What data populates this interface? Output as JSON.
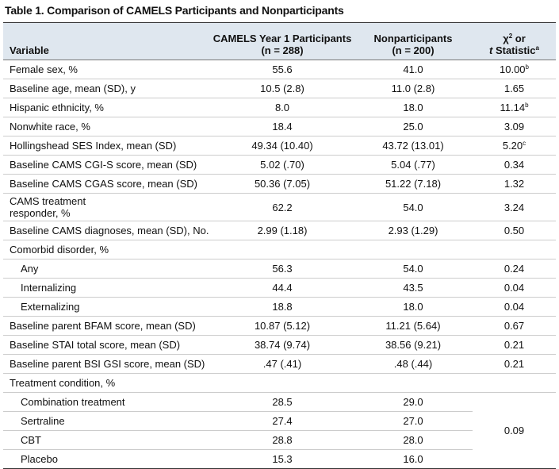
{
  "title": "Table 1. Comparison of CAMELS Participants and Nonparticipants",
  "table": {
    "header": {
      "variable": "Variable",
      "col1": [
        "CAMELS Year 1 Participants",
        "(n = 288)"
      ],
      "col2": [
        "Nonparticipants",
        "(n = 200)"
      ],
      "col3": {
        "line1": [
          "χ",
          "2",
          " or"
        ],
        "line2": [
          "t",
          " Statistic",
          "a"
        ]
      }
    },
    "rows": [
      [
        "Female sex, %",
        "55.6",
        "41.0",
        "10.00",
        "b"
      ],
      [
        "Baseline age, mean (SD), y",
        "10.5 (2.8)",
        "11.0 (2.8)",
        "1.65"
      ],
      [
        "Hispanic ethnicity, %",
        "8.0",
        "18.0",
        "11.14",
        "b"
      ],
      [
        "Nonwhite race, %",
        "18.4",
        "25.0",
        "3.09"
      ],
      [
        "Hollingshead SES Index, mean (SD)",
        "49.34 (10.40)",
        "43.72 (13.01)",
        "5.20",
        "c"
      ],
      [
        "Baseline CAMS CGI-S score, mean (SD)",
        "5.02 (.70)",
        "5.04 (.77)",
        "0.34"
      ],
      [
        "Baseline CAMS CGAS score, mean (SD)",
        "50.36 (7.05)",
        "51.22 (7.18)",
        "1.32"
      ],
      [
        "CAMS treatment responder, %",
        "62.2",
        "54.0",
        "3.24"
      ],
      [
        "Baseline CAMS diagnoses, mean (SD), No.",
        "2.99 (1.18)",
        "2.93 (1.29)",
        "0.50"
      ],
      [
        "Comorbid disorder, %"
      ],
      [
        "Any",
        "56.3",
        "54.0",
        "0.24"
      ],
      [
        "Internalizing",
        "44.4",
        "43.5",
        "0.04"
      ],
      [
        "Externalizing",
        "18.8",
        "18.0",
        "0.04"
      ],
      [
        "Baseline parent BFAM score, mean (SD)",
        "10.87 (5.12)",
        "11.21 (5.64)",
        "0.67"
      ],
      [
        "Baseline STAI total score, mean (SD)",
        "38.74 (9.74)",
        "38.56 (9.21)",
        "0.21"
      ],
      [
        "Baseline parent BSI GSI score, mean (SD)",
        ".47 (.41)",
        ".48 (.44)",
        "0.21"
      ],
      [
        "Treatment condition, %"
      ],
      [
        "Combination treatment",
        "28.5",
        "29.0"
      ],
      [
        "Sertraline",
        "27.4",
        "27.0"
      ],
      [
        "CBT",
        "28.8",
        "28.0"
      ],
      [
        "Placebo",
        "15.3",
        "16.0"
      ]
    ],
    "treatment_statistic": "0.09"
  }
}
